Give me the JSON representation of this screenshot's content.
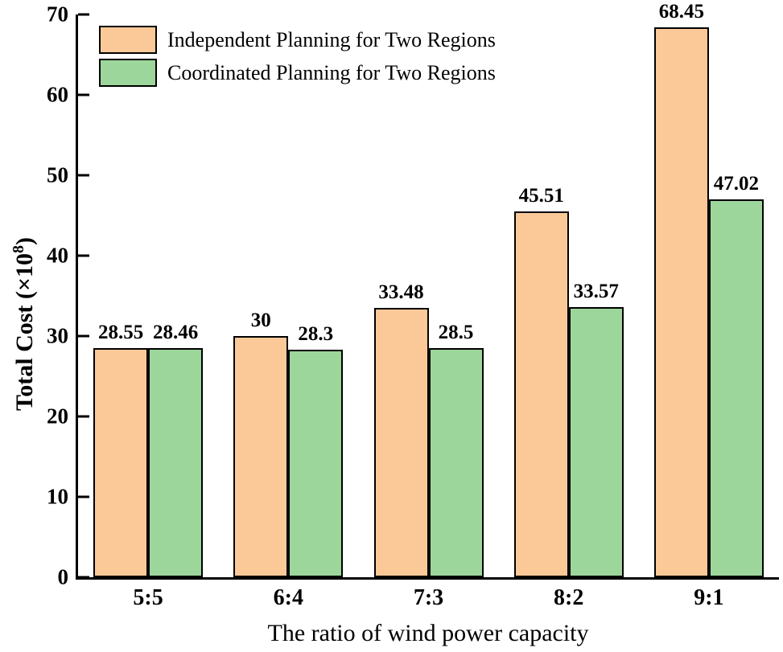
{
  "chart_data": {
    "type": "bar",
    "title": "",
    "xlabel": "The ratio of wind power capacity",
    "ylabel": "Total Cost (×10⁸)",
    "ylabel_parts": {
      "main": "Total Cost (×10",
      "sup": "8",
      "end": ")"
    },
    "categories": [
      "5:5",
      "6:4",
      "7:3",
      "8:2",
      "9:1"
    ],
    "series": [
      {
        "name": "Independent Planning for Two Regions",
        "color": "#FBC998",
        "values": [
          28.55,
          30,
          33.48,
          45.51,
          68.45
        ],
        "labels": [
          "28.55",
          "30",
          "33.48",
          "45.51",
          "68.45"
        ]
      },
      {
        "name": "Coordinated Planning for Two Regions",
        "color": "#9DD69B",
        "values": [
          28.46,
          28.3,
          28.5,
          33.57,
          47.02
        ],
        "labels": [
          "28.46",
          "28.3",
          "28.5",
          "33.57",
          "47.02"
        ]
      }
    ],
    "ylim": [
      0,
      70
    ],
    "yticks": [
      0,
      10,
      20,
      30,
      40,
      50,
      60,
      70
    ],
    "ytick_labels": [
      "0",
      "10",
      "20",
      "30",
      "40",
      "50",
      "60",
      "70"
    ],
    "legend_position": "upper left",
    "grid": false,
    "bar_edge_color": "#000000",
    "axis_color": "#000000"
  }
}
